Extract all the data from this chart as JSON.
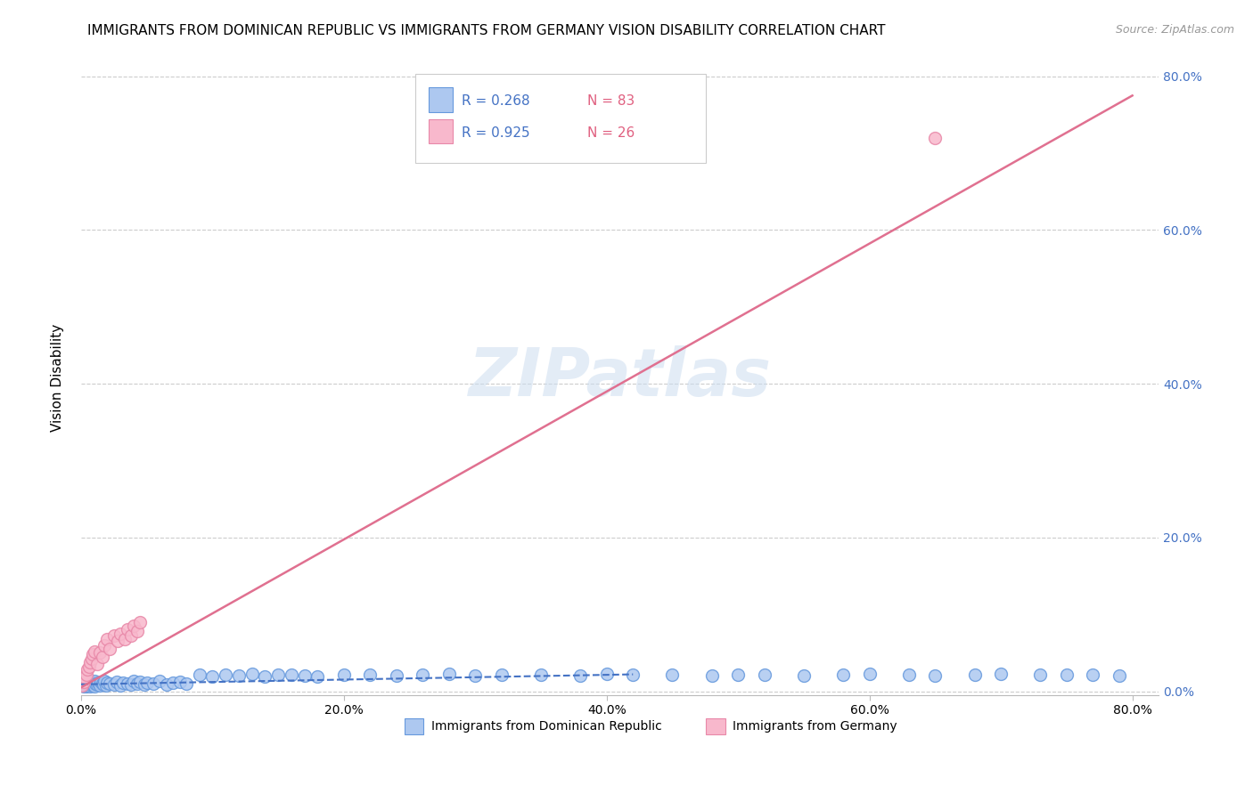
{
  "title": "IMMIGRANTS FROM DOMINICAN REPUBLIC VS IMMIGRANTS FROM GERMANY VISION DISABILITY CORRELATION CHART",
  "source": "Source: ZipAtlas.com",
  "ylabel": "Vision Disability",
  "series": [
    {
      "name": "Immigrants from Dominican Republic",
      "R": 0.268,
      "N": 83,
      "marker_facecolor": "#adc8f0",
      "marker_edgecolor": "#6699dd",
      "line_color": "#4472c4",
      "line_style": "--"
    },
    {
      "name": "Immigrants from Germany",
      "R": 0.925,
      "N": 26,
      "marker_facecolor": "#f8b8cc",
      "marker_edgecolor": "#e888a8",
      "line_color": "#e07090",
      "line_style": "-"
    }
  ],
  "xlim": [
    0.0,
    0.82
  ],
  "ylim": [
    -0.005,
    0.82
  ],
  "ytick_labels": [
    "0.0%",
    "20.0%",
    "40.0%",
    "60.0%",
    "80.0%"
  ],
  "ytick_values": [
    0.0,
    0.2,
    0.4,
    0.6,
    0.8
  ],
  "xtick_labels": [
    "0.0%",
    "20.0%",
    "40.0%",
    "60.0%",
    "80.0%"
  ],
  "xtick_values": [
    0.0,
    0.2,
    0.4,
    0.6,
    0.8
  ],
  "background_color": "#ffffff",
  "grid_color": "#cccccc",
  "watermark": "ZIPatlas",
  "legend_r_color": "#4472c4",
  "legend_n_color": "#e06080",
  "title_fontsize": 11,
  "source_fontsize": 9,
  "dr_x": [
    0.001,
    0.002,
    0.002,
    0.003,
    0.003,
    0.004,
    0.004,
    0.005,
    0.005,
    0.006,
    0.006,
    0.007,
    0.007,
    0.008,
    0.008,
    0.009,
    0.009,
    0.01,
    0.01,
    0.011,
    0.012,
    0.013,
    0.014,
    0.015,
    0.016,
    0.017,
    0.018,
    0.019,
    0.02,
    0.022,
    0.025,
    0.027,
    0.03,
    0.032,
    0.035,
    0.038,
    0.04,
    0.043,
    0.045,
    0.048,
    0.05,
    0.055,
    0.06,
    0.065,
    0.07,
    0.075,
    0.08,
    0.09,
    0.1,
    0.11,
    0.12,
    0.13,
    0.14,
    0.15,
    0.16,
    0.17,
    0.18,
    0.2,
    0.22,
    0.24,
    0.26,
    0.28,
    0.3,
    0.32,
    0.35,
    0.38,
    0.4,
    0.42,
    0.45,
    0.48,
    0.5,
    0.52,
    0.55,
    0.58,
    0.6,
    0.63,
    0.65,
    0.68,
    0.7,
    0.73,
    0.75,
    0.77,
    0.79
  ],
  "dr_y": [
    0.008,
    0.01,
    0.006,
    0.009,
    0.012,
    0.007,
    0.011,
    0.008,
    0.013,
    0.009,
    0.011,
    0.007,
    0.01,
    0.008,
    0.012,
    0.009,
    0.011,
    0.007,
    0.013,
    0.01,
    0.009,
    0.011,
    0.008,
    0.012,
    0.01,
    0.009,
    0.013,
    0.008,
    0.011,
    0.01,
    0.009,
    0.012,
    0.008,
    0.011,
    0.01,
    0.009,
    0.013,
    0.01,
    0.012,
    0.009,
    0.011,
    0.01,
    0.013,
    0.009,
    0.011,
    0.012,
    0.01,
    0.022,
    0.019,
    0.021,
    0.02,
    0.023,
    0.019,
    0.021,
    0.022,
    0.02,
    0.019,
    0.021,
    0.022,
    0.02,
    0.021,
    0.023,
    0.02,
    0.022,
    0.021,
    0.02,
    0.023,
    0.021,
    0.022,
    0.02,
    0.021,
    0.022,
    0.02,
    0.021,
    0.023,
    0.022,
    0.02,
    0.021,
    0.023,
    0.022,
    0.021,
    0.022,
    0.02
  ],
  "ger_x": [
    0.001,
    0.002,
    0.003,
    0.004,
    0.005,
    0.006,
    0.007,
    0.008,
    0.009,
    0.01,
    0.012,
    0.014,
    0.016,
    0.018,
    0.02,
    0.022,
    0.025,
    0.028,
    0.03,
    0.033,
    0.035,
    0.038,
    0.04,
    0.043,
    0.045,
    0.65
  ],
  "ger_y": [
    0.008,
    0.012,
    0.018,
    0.022,
    0.028,
    0.032,
    0.038,
    0.042,
    0.048,
    0.052,
    0.035,
    0.05,
    0.045,
    0.06,
    0.068,
    0.055,
    0.072,
    0.065,
    0.075,
    0.068,
    0.08,
    0.072,
    0.085,
    0.078,
    0.09,
    0.72
  ],
  "dr_trend_x": [
    0.0,
    0.42
  ],
  "dr_trend_y": [
    0.009,
    0.022
  ],
  "ger_trend_x": [
    0.0,
    0.8
  ],
  "ger_trend_y": [
    0.005,
    0.775
  ]
}
